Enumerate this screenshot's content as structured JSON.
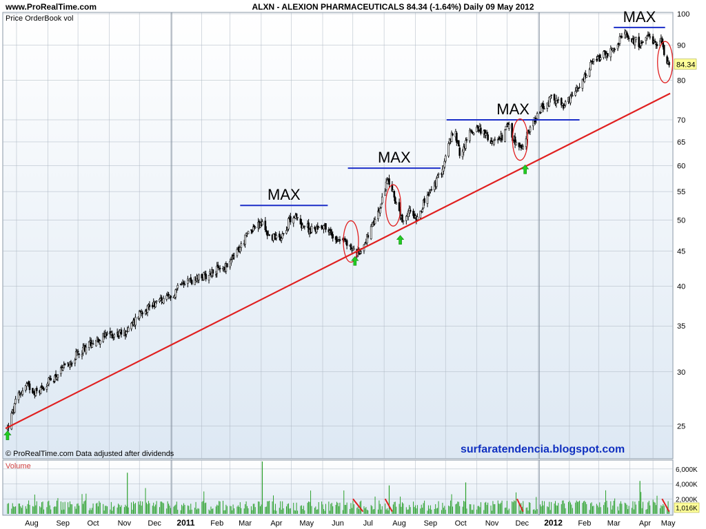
{
  "header": {
    "site": "www.ProRealTime.com",
    "title": "ALXN - ALEXION PHARMACEUTICALS    84.34 (-1.64%)    Daily  09 May 2012",
    "panel_label": "Price OrderBook vol",
    "footer_note": "© ProRealTime.com  Data adjusted after dividends",
    "watermark": "surfaratendencia.blogspot.com",
    "last_price_badge": "84.34"
  },
  "colors": {
    "plot_bg_top": "#ffffff",
    "plot_bg_bottom": "#dde8f3",
    "grid": "#aab4c0",
    "candle": "#000000",
    "trendline": "#e02020",
    "max_line": "#1a2cc8",
    "circle": "#e02020",
    "arrow": "#22cc22",
    "volume_bar": "#2aa02a",
    "volume_down": "#e02020",
    "badge_bg": "#ffff99",
    "blog_text": "#1030c0"
  },
  "chart_data": [
    {
      "type": "candlestick",
      "title": "ALXN - ALEXION PHARMACEUTICALS",
      "y_scale": "log",
      "ylim": [
        22.5,
        100
      ],
      "y_ticks": [
        25,
        30,
        35,
        40,
        45,
        50,
        55,
        60,
        65,
        70,
        80,
        90,
        100
      ],
      "x_range": [
        "2010-07-20",
        "2012-05-10"
      ],
      "month_labels": [
        {
          "label": "Aug",
          "date": "2010-08-15"
        },
        {
          "label": "Sep",
          "date": "2010-09-15"
        },
        {
          "label": "Oct",
          "date": "2010-10-15"
        },
        {
          "label": "Nov",
          "date": "2010-11-15"
        },
        {
          "label": "Dec",
          "date": "2010-12-15"
        },
        {
          "label": "2011",
          "date": "2011-01-15",
          "bold": true
        },
        {
          "label": "Feb",
          "date": "2011-02-15"
        },
        {
          "label": "Mar",
          "date": "2011-03-15"
        },
        {
          "label": "Apr",
          "date": "2011-04-15"
        },
        {
          "label": "May",
          "date": "2011-05-15"
        },
        {
          "label": "Jun",
          "date": "2011-06-15"
        },
        {
          "label": "Jul",
          "date": "2011-07-15"
        },
        {
          "label": "Aug",
          "date": "2011-08-15"
        },
        {
          "label": "Sep",
          "date": "2011-09-15"
        },
        {
          "label": "Oct",
          "date": "2011-10-15"
        },
        {
          "label": "Nov",
          "date": "2011-11-15"
        },
        {
          "label": "Dec",
          "date": "2011-12-15"
        },
        {
          "label": "2012",
          "date": "2012-01-15",
          "bold": true
        },
        {
          "label": "Feb",
          "date": "2012-02-15"
        },
        {
          "label": "Mar",
          "date": "2012-03-15"
        },
        {
          "label": "Apr",
          "date": "2012-04-15"
        },
        {
          "label": "May",
          "date": "2012-05-08"
        }
      ],
      "year_lines": [
        "2011-01-01",
        "2012-01-01"
      ],
      "grid": true,
      "price_path": [
        {
          "date": "2010-07-22",
          "close": 24.8
        },
        {
          "date": "2010-08-01",
          "close": 27.6
        },
        {
          "date": "2010-08-10",
          "close": 28.7
        },
        {
          "date": "2010-08-20",
          "close": 28.0
        },
        {
          "date": "2010-09-01",
          "close": 29.0
        },
        {
          "date": "2010-09-15",
          "close": 30.2
        },
        {
          "date": "2010-10-01",
          "close": 32.0
        },
        {
          "date": "2010-10-15",
          "close": 33.3
        },
        {
          "date": "2010-11-01",
          "close": 34.0
        },
        {
          "date": "2010-11-15",
          "close": 34.2
        },
        {
          "date": "2010-11-22",
          "close": 35.0
        },
        {
          "date": "2010-12-01",
          "close": 36.8
        },
        {
          "date": "2010-12-15",
          "close": 37.8
        },
        {
          "date": "2011-01-01",
          "close": 38.5
        },
        {
          "date": "2011-01-10",
          "close": 40.8
        },
        {
          "date": "2011-01-25",
          "close": 40.8
        },
        {
          "date": "2011-02-10",
          "close": 42.0
        },
        {
          "date": "2011-02-25",
          "close": 42.7
        },
        {
          "date": "2011-03-10",
          "close": 45.5
        },
        {
          "date": "2011-03-20",
          "close": 48.5
        },
        {
          "date": "2011-04-01",
          "close": 49.3
        },
        {
          "date": "2011-04-08",
          "close": 47.3
        },
        {
          "date": "2011-04-20",
          "close": 47.3
        },
        {
          "date": "2011-05-01",
          "close": 51.0
        },
        {
          "date": "2011-05-10",
          "close": 49.3
        },
        {
          "date": "2011-05-20",
          "close": 48.3
        },
        {
          "date": "2011-06-01",
          "close": 49.2
        },
        {
          "date": "2011-06-10",
          "close": 47.3
        },
        {
          "date": "2011-06-20",
          "close": 46.8
        },
        {
          "date": "2011-06-28",
          "close": 45.5
        },
        {
          "date": "2011-07-05",
          "close": 44.6
        },
        {
          "date": "2011-07-12",
          "close": 46.5
        },
        {
          "date": "2011-07-20",
          "close": 49.0
        },
        {
          "date": "2011-07-28",
          "close": 52.5
        },
        {
          "date": "2011-08-03",
          "close": 57.5
        },
        {
          "date": "2011-08-10",
          "close": 54.2
        },
        {
          "date": "2011-08-16",
          "close": 50.5
        },
        {
          "date": "2011-08-20",
          "close": 48.8
        },
        {
          "date": "2011-08-25",
          "close": 51.8
        },
        {
          "date": "2011-09-01",
          "close": 50.5
        },
        {
          "date": "2011-09-10",
          "close": 53.5
        },
        {
          "date": "2011-09-20",
          "close": 56.5
        },
        {
          "date": "2011-09-28",
          "close": 60.0
        },
        {
          "date": "2011-10-05",
          "close": 66.0
        },
        {
          "date": "2011-10-10",
          "close": 66.5
        },
        {
          "date": "2011-10-15",
          "close": 61.5
        },
        {
          "date": "2011-10-22",
          "close": 66.5
        },
        {
          "date": "2011-11-01",
          "close": 68.5
        },
        {
          "date": "2011-11-10",
          "close": 66.0
        },
        {
          "date": "2011-11-20",
          "close": 64.5
        },
        {
          "date": "2011-12-01",
          "close": 68.5
        },
        {
          "date": "2011-12-08",
          "close": 65.0
        },
        {
          "date": "2011-12-15",
          "close": 63.0
        },
        {
          "date": "2011-12-22",
          "close": 68.0
        },
        {
          "date": "2012-01-01",
          "close": 72.0
        },
        {
          "date": "2012-01-15",
          "close": 75.5
        },
        {
          "date": "2012-01-25",
          "close": 73.0
        },
        {
          "date": "2012-02-10",
          "close": 78.0
        },
        {
          "date": "2012-02-22",
          "close": 84.5
        },
        {
          "date": "2012-03-05",
          "close": 87.0
        },
        {
          "date": "2012-03-15",
          "close": 88.5
        },
        {
          "date": "2012-03-25",
          "close": 93.5
        },
        {
          "date": "2012-04-01",
          "close": 92.0
        },
        {
          "date": "2012-04-10",
          "close": 90.5
        },
        {
          "date": "2012-04-18",
          "close": 92.0
        },
        {
          "date": "2012-04-25",
          "close": 90.0
        },
        {
          "date": "2012-05-01",
          "close": 91.5
        },
        {
          "date": "2012-05-05",
          "close": 87.0
        },
        {
          "date": "2012-05-09",
          "close": 84.34
        }
      ],
      "last_close": 84.34,
      "trendline": {
        "from": {
          "date": "2010-07-20",
          "value": 24.8
        },
        "to": {
          "date": "2012-05-10",
          "value": 76.5
        }
      },
      "max_levels": [
        {
          "label": "MAX",
          "value": 52.5,
          "from": "2011-03-10",
          "to": "2011-06-05"
        },
        {
          "label": "MAX",
          "value": 59.5,
          "from": "2011-06-25",
          "to": "2011-09-25"
        },
        {
          "label": "MAX",
          "value": 70.0,
          "from": "2011-10-01",
          "to": "2012-02-10"
        },
        {
          "label": "MAX",
          "value": 95.5,
          "from": "2012-03-15",
          "to": "2012-05-05"
        }
      ],
      "circled_zones": [
        {
          "date": "2011-06-28",
          "value": 46.5
        },
        {
          "date": "2011-08-09",
          "value": 52.5
        },
        {
          "date": "2011-12-13",
          "value": 65.5
        },
        {
          "date": "2012-05-05",
          "value": 85.0
        }
      ],
      "up_arrows": [
        {
          "date": "2010-07-22",
          "value": 24.2
        },
        {
          "date": "2011-07-02",
          "value": 43.5
        },
        {
          "date": "2011-08-16",
          "value": 46.7
        },
        {
          "date": "2011-12-18",
          "value": 59.2
        }
      ]
    },
    {
      "type": "bar",
      "title": "Volume",
      "ylim": [
        0,
        7000
      ],
      "y_ticks": [
        {
          "value": 2000,
          "label": "2,000K"
        },
        {
          "value": 4000,
          "label": "4,000K"
        },
        {
          "value": 6000,
          "label": "6,000K"
        }
      ],
      "last_value_label": "1,016K",
      "spikes": [
        {
          "date": "2010-11-18",
          "value": 5500
        },
        {
          "date": "2011-04-01",
          "value": 8000
        },
        {
          "date": "2011-08-05",
          "value": 3800
        },
        {
          "date": "2011-10-20",
          "value": 4200
        },
        {
          "date": "2012-04-10",
          "value": 4400
        }
      ],
      "down_markers": [
        {
          "from": "2011-06-30",
          "to": "2011-07-10"
        },
        {
          "from": "2011-08-01",
          "to": "2011-08-08"
        },
        {
          "from": "2011-12-10",
          "to": "2011-12-16"
        },
        {
          "from": "2012-05-02",
          "to": "2012-05-09"
        }
      ]
    }
  ]
}
